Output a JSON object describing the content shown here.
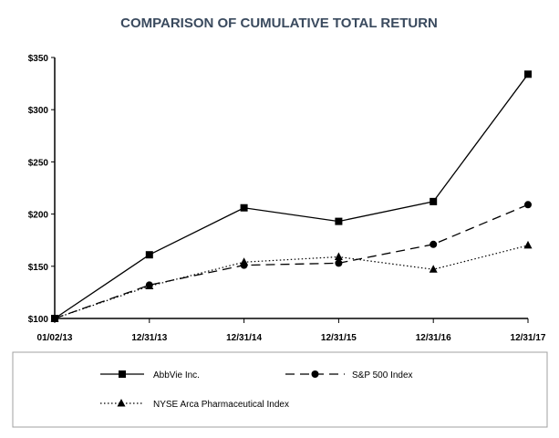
{
  "chart_data": {
    "type": "line",
    "title": "COMPARISON OF CUMULATIVE TOTAL RETURN",
    "xlabel": "",
    "ylabel": "",
    "categories": [
      "01/02/13",
      "12/31/13",
      "12/31/14",
      "12/31/15",
      "12/31/16",
      "12/31/17"
    ],
    "y_ticks": [
      "$100",
      "$150",
      "$200",
      "$250",
      "$300",
      "$350"
    ],
    "y_tick_values": [
      100,
      150,
      200,
      250,
      300,
      350
    ],
    "ylim": [
      100,
      350
    ],
    "grid": false,
    "legend_position": "bottom",
    "series": [
      {
        "name": "AbbVie Inc.",
        "values": [
          100,
          161,
          206,
          193,
          212,
          334
        ],
        "marker": "square",
        "line": "solid"
      },
      {
        "name": "S&P 500 Index",
        "values": [
          100,
          132,
          151,
          153,
          171,
          209
        ],
        "marker": "circle",
        "line": "dashed"
      },
      {
        "name": "NYSE Arca Pharmaceutical Index",
        "values": [
          100,
          131,
          154,
          159,
          147,
          170
        ],
        "marker": "triangle",
        "line": "dotted"
      }
    ]
  }
}
